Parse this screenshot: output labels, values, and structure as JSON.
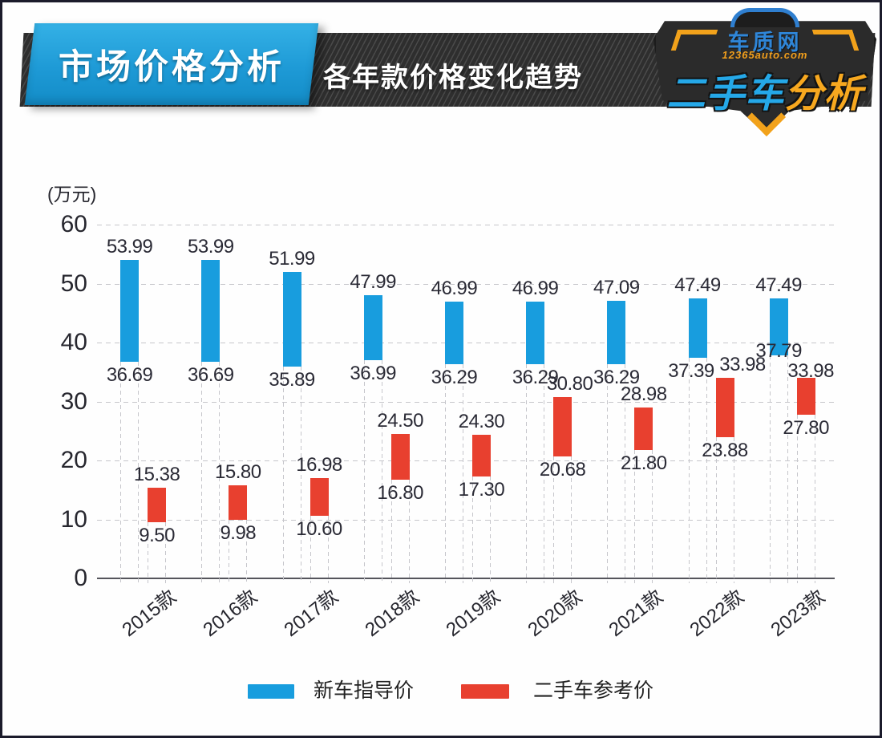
{
  "header": {
    "title": "市场价格分析",
    "subtitle": "各年款价格变化趋势",
    "logo": {
      "site": "车质网",
      "url": "12365auto.com",
      "line_blue": "二手车",
      "line_orange": "分析"
    }
  },
  "chart_data": {
    "type": "bar",
    "subtype": "floating_range_columns",
    "title": "各年款价格变化趋势",
    "unit_label": "(万元)",
    "categories": [
      "2015款",
      "2016款",
      "2017款",
      "2018款",
      "2019款",
      "2020款",
      "2021款",
      "2022款",
      "2023款"
    ],
    "series": [
      {
        "name": "新车指导价",
        "color": "#189DDE",
        "ranges": [
          [
            36.69,
            53.99
          ],
          [
            36.69,
            53.99
          ],
          [
            35.89,
            51.99
          ],
          [
            36.99,
            47.99
          ],
          [
            36.29,
            46.99
          ],
          [
            36.29,
            46.99
          ],
          [
            36.29,
            47.09
          ],
          [
            37.39,
            47.49
          ],
          [
            37.79,
            47.49
          ]
        ]
      },
      {
        "name": "二手车参考价",
        "color": "#E8402F",
        "ranges": [
          [
            9.5,
            15.38
          ],
          [
            9.98,
            15.8
          ],
          [
            10.6,
            16.98
          ],
          [
            16.8,
            24.5
          ],
          [
            17.3,
            24.3
          ],
          [
            20.68,
            30.8
          ],
          [
            21.8,
            28.98
          ],
          [
            23.88,
            33.98
          ],
          [
            27.8,
            33.98
          ]
        ]
      }
    ],
    "ylim": [
      0,
      60
    ],
    "yticks": [
      0,
      10,
      20,
      30,
      40,
      50,
      60
    ],
    "grid": {
      "horizontal": "dashed",
      "vertical": "dashed drop lines under each bar"
    },
    "legend_position": "bottom",
    "value_labels": "max above and min below every bar, two decimals"
  }
}
